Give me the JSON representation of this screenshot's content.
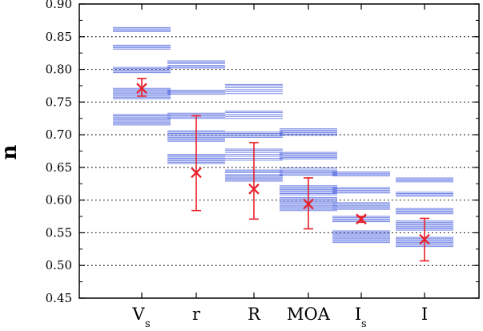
{
  "chart_data": {
    "type": "scatter",
    "title": "",
    "xlabel": "",
    "ylabel": "n",
    "ylim": [
      0.45,
      0.9
    ],
    "yticks": [
      "0.45",
      "0.50",
      "0.55",
      "0.60",
      "0.65",
      "0.70",
      "0.75",
      "0.80",
      "0.85",
      "0.90"
    ],
    "grid": "horizontal dotted",
    "categories": [
      {
        "main": "V",
        "sub": "s"
      },
      {
        "main": "r",
        "sub": ""
      },
      {
        "main": "R",
        "sub": ""
      },
      {
        "main": "MOA",
        "sub": ""
      },
      {
        "main": "I",
        "sub": "s"
      },
      {
        "main": "I",
        "sub": ""
      }
    ],
    "means": [
      0.771,
      0.642,
      0.617,
      0.594,
      0.571,
      0.54
    ],
    "error_low": [
      0.759,
      0.584,
      0.571,
      0.556,
      0.566,
      0.507
    ],
    "error_high": [
      0.786,
      0.729,
      0.688,
      0.634,
      0.575,
      0.572
    ],
    "distribution_lines": [
      [
        0.864,
        0.862,
        0.86,
        0.858,
        0.837,
        0.835,
        0.833,
        0.831,
        0.803,
        0.801,
        0.799,
        0.797,
        0.795,
        0.771,
        0.769,
        0.767,
        0.765,
        0.763,
        0.761,
        0.759,
        0.757,
        0.755,
        0.731,
        0.729,
        0.727,
        0.725,
        0.723,
        0.721,
        0.719,
        0.717,
        0.715
      ],
      [
        0.813,
        0.811,
        0.809,
        0.806,
        0.804,
        0.802,
        0.768,
        0.766,
        0.764,
        0.762,
        0.733,
        0.731,
        0.729,
        0.727,
        0.725,
        0.706,
        0.704,
        0.702,
        0.7,
        0.698,
        0.696,
        0.694,
        0.692,
        0.69,
        0.67,
        0.668,
        0.666,
        0.664,
        0.662,
        0.66,
        0.658,
        0.656
      ],
      [
        0.777,
        0.775,
        0.772,
        0.769,
        0.766,
        0.763,
        0.736,
        0.734,
        0.731,
        0.728,
        0.725,
        0.704,
        0.702,
        0.7,
        0.698,
        0.696,
        0.678,
        0.676,
        0.673,
        0.67,
        0.667,
        0.664,
        0.661,
        0.646,
        0.644,
        0.642,
        0.639,
        0.637,
        0.635,
        0.633,
        0.631,
        0.629
      ],
      [
        0.709,
        0.707,
        0.705,
        0.703,
        0.701,
        0.699,
        0.673,
        0.671,
        0.669,
        0.667,
        0.665,
        0.663,
        0.649,
        0.646,
        0.644,
        0.642,
        0.64,
        0.638,
        0.622,
        0.62,
        0.618,
        0.616,
        0.614,
        0.612,
        0.61,
        0.608,
        0.604,
        0.602,
        0.6,
        0.598,
        0.596,
        0.594,
        0.592,
        0.59,
        0.588,
        0.586,
        0.584
      ],
      [
        0.643,
        0.641,
        0.639,
        0.637,
        0.619,
        0.617,
        0.615,
        0.613,
        0.611,
        0.596,
        0.594,
        0.592,
        0.59,
        0.588,
        0.586,
        0.575,
        0.573,
        0.571,
        0.569,
        0.567,
        0.553,
        0.551,
        0.549,
        0.547,
        0.545,
        0.543,
        0.541,
        0.539,
        0.537,
        0.535
      ],
      [
        0.634,
        0.632,
        0.63,
        0.628,
        0.612,
        0.61,
        0.608,
        0.606,
        0.587,
        0.585,
        0.583,
        0.581,
        0.579,
        0.568,
        0.566,
        0.564,
        0.562,
        0.56,
        0.558,
        0.556,
        0.554,
        0.543,
        0.541,
        0.539,
        0.537,
        0.535,
        0.533,
        0.531,
        0.529
      ]
    ],
    "colors": {
      "distribution": "#5a6ee0",
      "marker": "#e8202a",
      "grid": "#000000"
    }
  }
}
